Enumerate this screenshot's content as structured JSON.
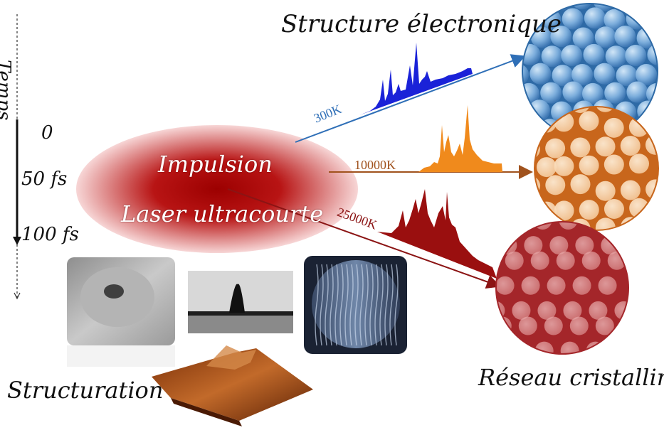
{
  "title_top": "Structure électronique",
  "title_reseau": "Réseau cristallin",
  "title_structuration": "Structuration",
  "time_axis": {
    "label": "Temps",
    "ticks": [
      "0",
      "50 fs",
      "100 fs"
    ]
  },
  "pulse": {
    "line1": "Impulsion",
    "line2": "Laser ultracourte"
  },
  "temperatures": [
    {
      "label": "300K",
      "color": "#2f6fb7"
    },
    {
      "label": "10000K",
      "color": "#a0521d"
    },
    {
      "label": "25000K",
      "color": "#8b1414"
    }
  ],
  "colors": {
    "ellipse_core": "#a80000",
    "ellipse_edge": "#f6c9c9",
    "spectrum_blue": "#1a22d8",
    "spectrum_orange": "#f08a1c",
    "spectrum_red": "#9a0f0f",
    "lattice_blue": "#2e6aa6",
    "lattice_orange": "#c8661c",
    "lattice_red": "#a4262a"
  }
}
